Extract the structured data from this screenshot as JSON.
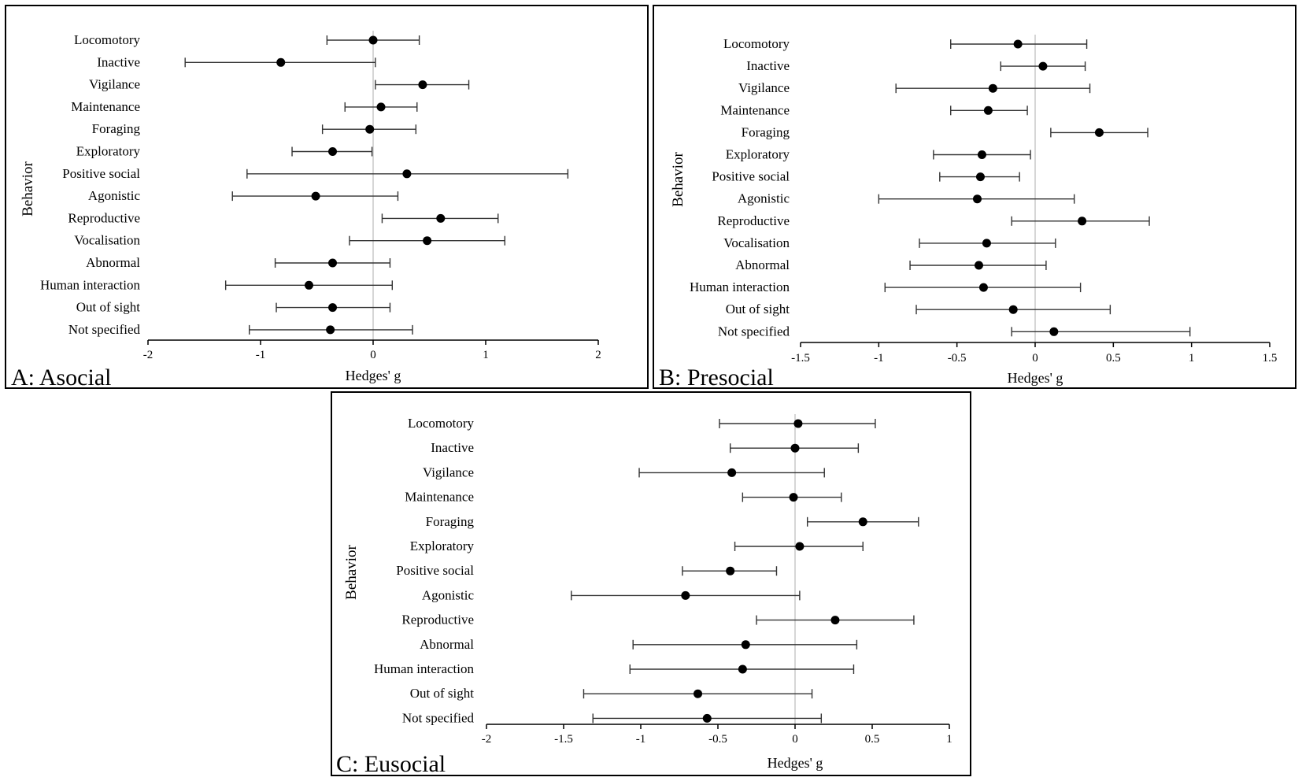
{
  "chart_data": [
    {
      "type": "forest",
      "panel_label": "A: Asocial",
      "xlabel": "Hedges' g",
      "ylabel": "Behavior",
      "xlim": [
        -2,
        2
      ],
      "xticks": [
        "-2",
        "-1",
        "0",
        "1",
        "2"
      ],
      "categories": [
        "Locomotory",
        "Inactive",
        "Vigilance",
        "Maintenance",
        "Foraging",
        "Exploratory",
        "Positive social",
        "Agonistic",
        "Reproductive",
        "Vocalisation",
        "Abnormal",
        "Human interaction",
        "Out of sight",
        "Not specified"
      ],
      "estimates": [
        0.0,
        -0.82,
        0.44,
        0.07,
        -0.03,
        -0.36,
        0.3,
        -0.51,
        0.6,
        0.48,
        -0.36,
        -0.57,
        -0.36,
        -0.38
      ],
      "lower": [
        -0.41,
        -1.67,
        0.02,
        -0.25,
        -0.45,
        -0.72,
        -1.12,
        -1.25,
        0.08,
        -0.21,
        -0.87,
        -1.31,
        -0.86,
        -1.1
      ],
      "upper": [
        0.41,
        0.02,
        0.85,
        0.39,
        0.38,
        -0.01,
        1.73,
        0.22,
        1.11,
        1.17,
        0.15,
        0.17,
        0.15,
        0.35
      ]
    },
    {
      "type": "forest",
      "panel_label": "B: Presocial",
      "xlabel": "Hedges' g",
      "ylabel": "Behavior",
      "xlim": [
        -1.5,
        1.5
      ],
      "xticks": [
        "-1.5",
        "-1",
        "-0.5",
        "0",
        "0.5",
        "1",
        "1.5"
      ],
      "categories": [
        "Locomotory",
        "Inactive",
        "Vigilance",
        "Maintenance",
        "Foraging",
        "Exploratory",
        "Positive social",
        "Agonistic",
        "Reproductive",
        "Vocalisation",
        "Abnormal",
        "Human interaction",
        "Out of sight",
        "Not specified"
      ],
      "estimates": [
        -0.11,
        0.05,
        -0.27,
        -0.3,
        0.41,
        -0.34,
        -0.35,
        -0.37,
        0.3,
        -0.31,
        -0.36,
        -0.33,
        -0.14,
        0.12
      ],
      "lower": [
        -0.54,
        -0.22,
        -0.89,
        -0.54,
        0.1,
        -0.65,
        -0.61,
        -1.0,
        -0.15,
        -0.74,
        -0.8,
        -0.96,
        -0.76,
        -0.15
      ],
      "upper": [
        0.33,
        0.32,
        0.35,
        -0.05,
        0.72,
        -0.03,
        -0.1,
        0.25,
        0.73,
        0.13,
        0.07,
        0.29,
        0.48,
        0.99
      ]
    },
    {
      "type": "forest",
      "panel_label": "C: Eusocial",
      "xlabel": "Hedges' g",
      "ylabel": "Behavior",
      "xlim": [
        -2,
        1
      ],
      "xticks": [
        "-2",
        "-1.5",
        "-1",
        "-0.5",
        "0",
        "0.5",
        "1"
      ],
      "categories": [
        "Locomotory",
        "Inactive",
        "Vigilance",
        "Maintenance",
        "Foraging",
        "Exploratory",
        "Positive social",
        "Agonistic",
        "Reproductive",
        "Abnormal",
        "Human interaction",
        "Out of sight",
        "Not specified"
      ],
      "estimates": [
        0.02,
        0.0,
        -0.41,
        -0.01,
        0.44,
        0.03,
        -0.42,
        -0.71,
        0.26,
        -0.32,
        -0.34,
        -0.63,
        -0.57
      ],
      "lower": [
        -0.49,
        -0.42,
        -1.01,
        -0.34,
        0.08,
        -0.39,
        -0.73,
        -1.45,
        -0.25,
        -1.05,
        -1.07,
        -1.37,
        -1.31
      ],
      "upper": [
        0.52,
        0.41,
        0.19,
        0.3,
        0.8,
        0.44,
        -0.12,
        0.03,
        0.77,
        0.4,
        0.38,
        0.11,
        0.17
      ]
    }
  ]
}
